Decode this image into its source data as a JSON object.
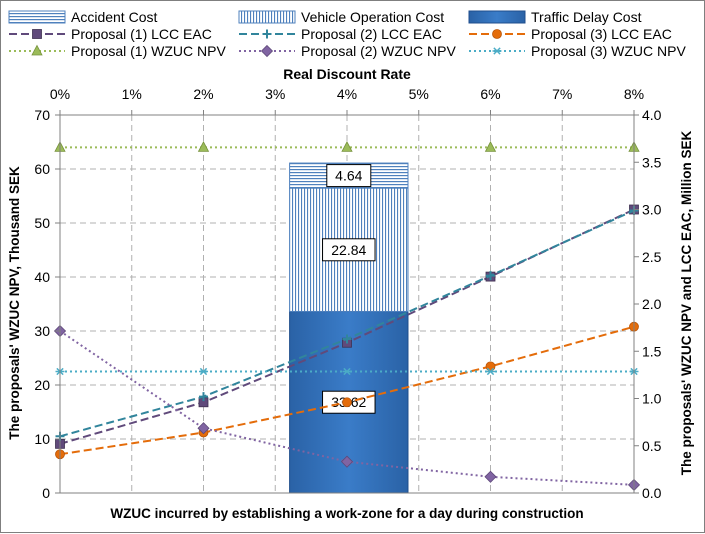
{
  "chart_data": {
    "type": "combo-bar-line",
    "x_top_axis": {
      "label": "Real Discount Rate",
      "ticks": [
        "0%",
        "1%",
        "2%",
        "3%",
        "4%",
        "5%",
        "6%",
        "7%",
        "8%"
      ],
      "range": [
        0,
        8
      ],
      "unit": "%"
    },
    "y_left_axis": {
      "label": "The proposals' WZUC NPV, Thousand SEK",
      "range": [
        0,
        70
      ],
      "ticks": [
        "0",
        "10",
        "20",
        "30",
        "40",
        "50",
        "60",
        "70"
      ]
    },
    "y_right_axis": {
      "label": "The proposals'  WZUC NPV and LCC EAC, Million SEK",
      "range": [
        0,
        4
      ],
      "ticks": [
        "0.0",
        "0.5",
        "1.0",
        "1.5",
        "2.0",
        "2.5",
        "3.0",
        "3.5",
        "4.0"
      ]
    },
    "x_bottom_label": "WZUC incurred by establishing a work-zone for a day during construction",
    "grid": true,
    "legend_position": "top",
    "stacked_bar": {
      "x_range": [
        3.2,
        4.85
      ],
      "axis": "left",
      "segments": [
        {
          "name": "Traffic Delay Cost",
          "value": 33.62,
          "label": "33.62",
          "color": "#2e6db4"
        },
        {
          "name": "Vehicle Operation Cost",
          "value": 22.84,
          "label": "22.84",
          "color": "#c5d8ee"
        },
        {
          "name": "Accident Cost",
          "value": 4.64,
          "label": "4.64",
          "color": "#d3e1f2"
        }
      ]
    },
    "series": [
      {
        "name": "Proposal (1) LCC EAC",
        "axis": "right",
        "color": "#604a7b",
        "dash": "8,4",
        "marker": "square",
        "x": [
          0,
          2,
          4,
          6,
          8
        ],
        "y": [
          0.52,
          0.96,
          1.59,
          2.29,
          3.0
        ]
      },
      {
        "name": "Proposal (2) LCC EAC",
        "axis": "right",
        "color": "#31859c",
        "dash": "8,4",
        "marker": "plus",
        "x": [
          0,
          2,
          4,
          6,
          8
        ],
        "y": [
          0.6,
          1.02,
          1.63,
          2.3,
          2.99
        ]
      },
      {
        "name": "Proposal (3) LCC EAC",
        "axis": "right",
        "color": "#e46c0a",
        "dash": "8,4",
        "marker": "circle",
        "x": [
          0,
          2,
          4,
          6,
          8
        ],
        "y": [
          0.41,
          0.64,
          0.96,
          1.34,
          1.76
        ]
      },
      {
        "name": "Proposal (1) WZUC NPV",
        "axis": "left",
        "color": "#9bbb59",
        "dash": "2,3",
        "marker": "triangle",
        "x": [
          0,
          2,
          4,
          6,
          8
        ],
        "y": [
          64,
          64,
          64,
          64,
          64
        ]
      },
      {
        "name": "Proposal (2) WZUC NPV",
        "axis": "left",
        "color": "#8064a2",
        "dash": "2,3",
        "marker": "diamond",
        "x": [
          0,
          2,
          4,
          6,
          8
        ],
        "y": [
          30,
          12,
          5.8,
          3,
          1.5
        ]
      },
      {
        "name": "Proposal (3) WZUC NPV",
        "axis": "left",
        "color": "#4bacc6",
        "dash": "2,3",
        "marker": "star",
        "x": [
          0,
          2,
          4,
          6,
          8
        ],
        "y": [
          22.5,
          22.5,
          22.5,
          22.5,
          22.5
        ]
      }
    ],
    "legend": [
      {
        "name": "Accident Cost",
        "kind": "hbar"
      },
      {
        "name": "Vehicle Operation Cost",
        "kind": "vbar"
      },
      {
        "name": "Traffic Delay Cost",
        "kind": "solid"
      },
      {
        "name": "Proposal (1) LCC EAC",
        "kind": "line",
        "series": 0
      },
      {
        "name": "Proposal (2) LCC EAC",
        "kind": "line",
        "series": 1
      },
      {
        "name": "Proposal (3) LCC EAC",
        "kind": "line",
        "series": 2
      },
      {
        "name": "Proposal (1) WZUC NPV",
        "kind": "line",
        "series": 3
      },
      {
        "name": "Proposal (2) WZUC NPV",
        "kind": "line",
        "series": 4
      },
      {
        "name": "Proposal (3) WZUC NPV",
        "kind": "line",
        "series": 5
      }
    ]
  }
}
